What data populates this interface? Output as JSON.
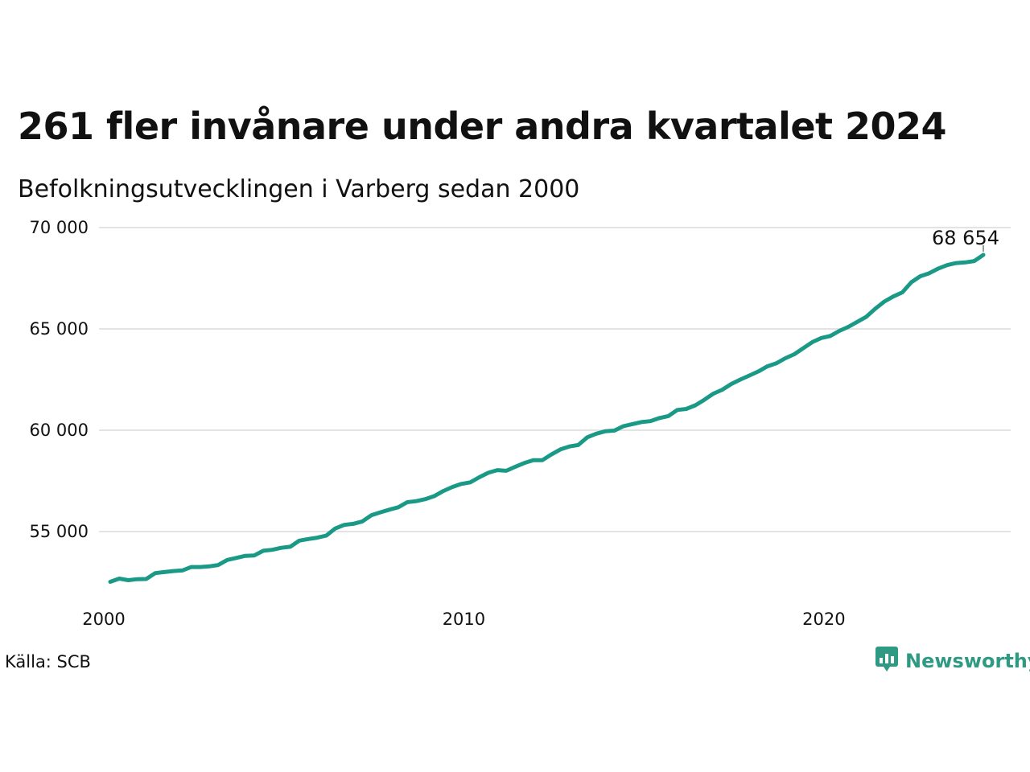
{
  "title": "261 fler invånare under andra kvartalet 2024",
  "subtitle": "Befolkningsutvecklingen i Varberg sedan 2000",
  "source": "Källa: SCB",
  "brand": {
    "name": "Newsworthy",
    "icon": "newsworthy-logo-icon",
    "color": "#2f9a84"
  },
  "colors": {
    "line": "#1a9a86",
    "grid": "#e3e3e3"
  },
  "chart_data": {
    "type": "line",
    "title": "261 fler invånare under andra kvartalet 2024",
    "xlabel": "",
    "ylabel": "",
    "xlim": [
      2000,
      2024.25
    ],
    "ylim": [
      51800,
      70000
    ],
    "grid": true,
    "y_ticks": [
      55000,
      60000,
      65000,
      70000
    ],
    "y_tick_labels": [
      "55 000",
      "60 000",
      "65 000",
      "70 000"
    ],
    "x_ticks": [
      2000,
      2010,
      2020
    ],
    "x_tick_labels": [
      "2000",
      "2010",
      "2020"
    ],
    "annotation": {
      "x": 2024.25,
      "y": 68654,
      "text": "68 654"
    },
    "series": [
      {
        "x": [
          2000,
          2000.25,
          2000.5,
          2000.75,
          2001,
          2001.25,
          2001.5,
          2001.75,
          2002,
          2002.25,
          2002.5,
          2002.75,
          2003,
          2003.25,
          2003.5,
          2003.75,
          2004,
          2004.25,
          2004.5,
          2004.75,
          2005,
          2005.25,
          2005.5,
          2005.75,
          2006,
          2006.25,
          2006.5,
          2006.75,
          2007,
          2007.25,
          2007.5,
          2007.75,
          2008,
          2008.25,
          2008.5,
          2008.75,
          2009,
          2009.25,
          2009.5,
          2009.75,
          2010,
          2010.25,
          2010.5,
          2010.75,
          2011,
          2011.25,
          2011.5,
          2011.75,
          2012,
          2012.25,
          2012.5,
          2012.75,
          2013,
          2013.25,
          2013.5,
          2013.75,
          2014,
          2014.25,
          2014.5,
          2014.75,
          2015,
          2015.25,
          2015.5,
          2015.75,
          2016,
          2016.25,
          2016.5,
          2016.75,
          2017,
          2017.25,
          2017.5,
          2017.75,
          2018,
          2018.25,
          2018.5,
          2018.75,
          2019,
          2019.25,
          2019.5,
          2019.75,
          2020,
          2020.25,
          2020.5,
          2020.75,
          2021,
          2021.25,
          2021.5,
          2021.75,
          2022,
          2022.25,
          2022.5,
          2022.75,
          2023,
          2023.25,
          2023.5,
          2023.75,
          2024,
          2024.25
        ],
        "values": [
          52520,
          52680,
          52600,
          52650,
          52660,
          52950,
          53000,
          53050,
          53080,
          53250,
          53250,
          53280,
          53350,
          53600,
          53700,
          53800,
          53820,
          54050,
          54100,
          54200,
          54250,
          54550,
          54630,
          54700,
          54800,
          55150,
          55330,
          55380,
          55500,
          55800,
          55950,
          56080,
          56200,
          56450,
          56500,
          56600,
          56750,
          57000,
          57200,
          57350,
          57430,
          57680,
          57900,
          58030,
          58000,
          58200,
          58380,
          58520,
          58520,
          58800,
          59050,
          59200,
          59270,
          59650,
          59830,
          59950,
          59980,
          60200,
          60300,
          60400,
          60450,
          60600,
          60700,
          61000,
          61050,
          61230,
          61500,
          61800,
          62000,
          62280,
          62500,
          62700,
          62900,
          63150,
          63300,
          63550,
          63750,
          64050,
          64350,
          64550,
          64650,
          64900,
          65100,
          65350,
          65600,
          66000,
          66350,
          66600,
          66800,
          67300,
          67600,
          67750,
          67980,
          68150,
          68250,
          68280,
          68350,
          68654
        ]
      }
    ]
  }
}
